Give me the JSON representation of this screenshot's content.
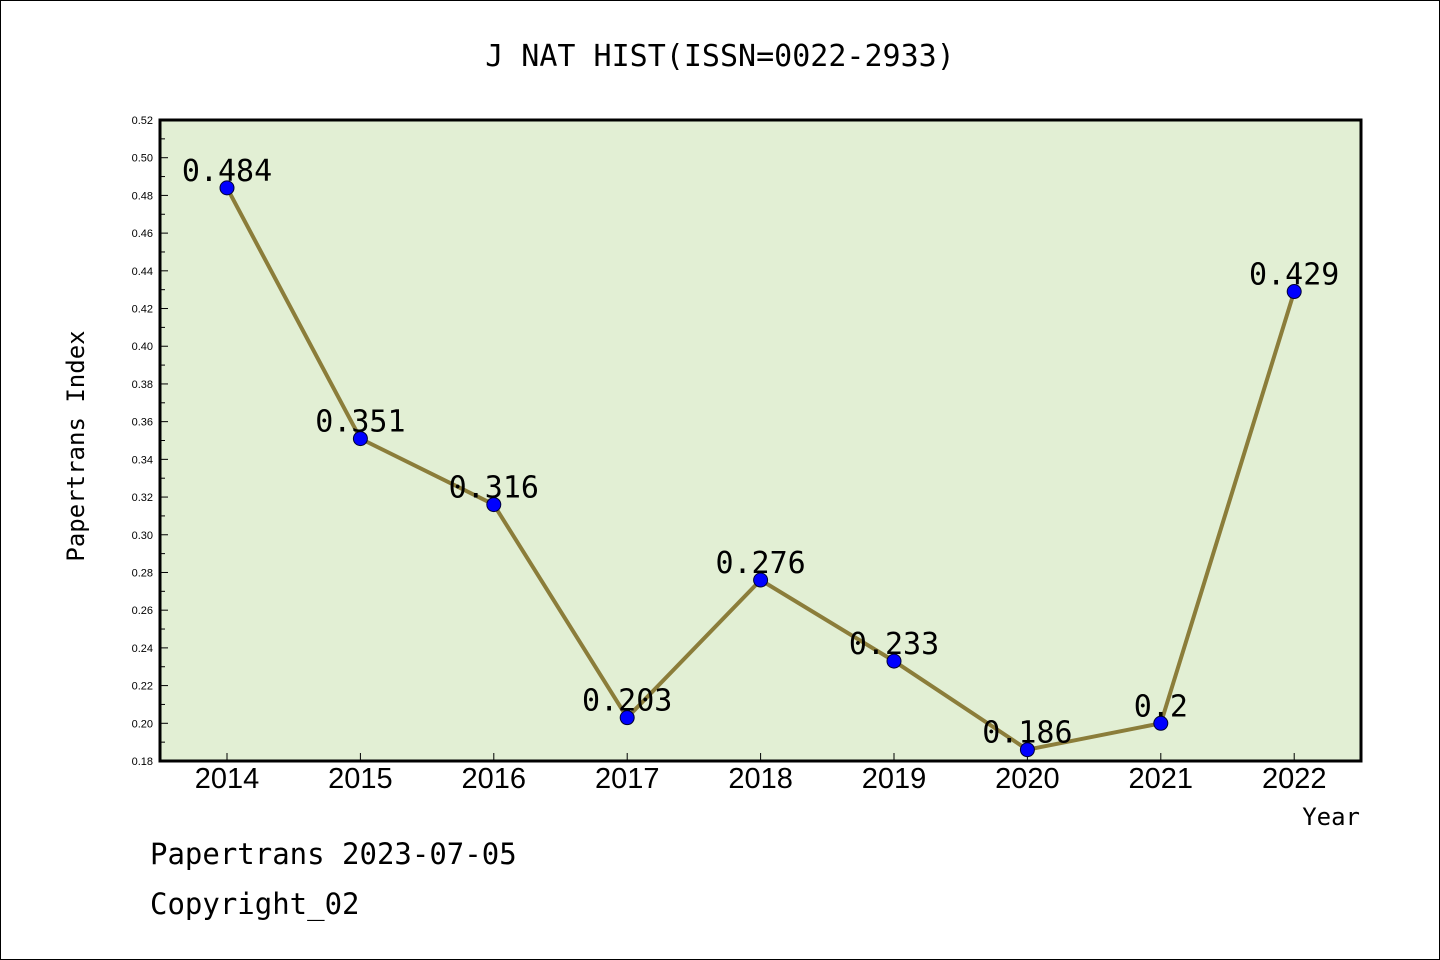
{
  "chart_data": {
    "type": "line",
    "title": "J NAT HIST(ISSN=0022-2933)",
    "xlabel": "Year",
    "ylabel": "Papertrans Index",
    "categories": [
      "2014",
      "2015",
      "2016",
      "2017",
      "2018",
      "2019",
      "2020",
      "2021",
      "2022"
    ],
    "values": [
      0.484,
      0.351,
      0.316,
      0.203,
      0.276,
      0.233,
      0.186,
      0.2,
      0.429
    ],
    "data_labels": [
      "0.484",
      "0.351",
      "0.316",
      "0.203",
      "0.276",
      "0.233",
      "0.186",
      "0.2",
      "0.429"
    ],
    "ylim": [
      0.18,
      0.52
    ],
    "yticks": [
      "0.18",
      "0.20",
      "0.22",
      "0.24",
      "0.26",
      "0.28",
      "0.30",
      "0.32",
      "0.34",
      "0.36",
      "0.38",
      "0.40",
      "0.42",
      "0.44",
      "0.46",
      "0.48",
      "0.50",
      "0.52"
    ],
    "grid": false,
    "colors": {
      "plot_background": "#e2efd4",
      "line": "#8b7d3a",
      "marker": "#0000ff"
    }
  },
  "footer": {
    "line1": "Papertrans 2023-07-05",
    "line2": "Copyright_02"
  }
}
